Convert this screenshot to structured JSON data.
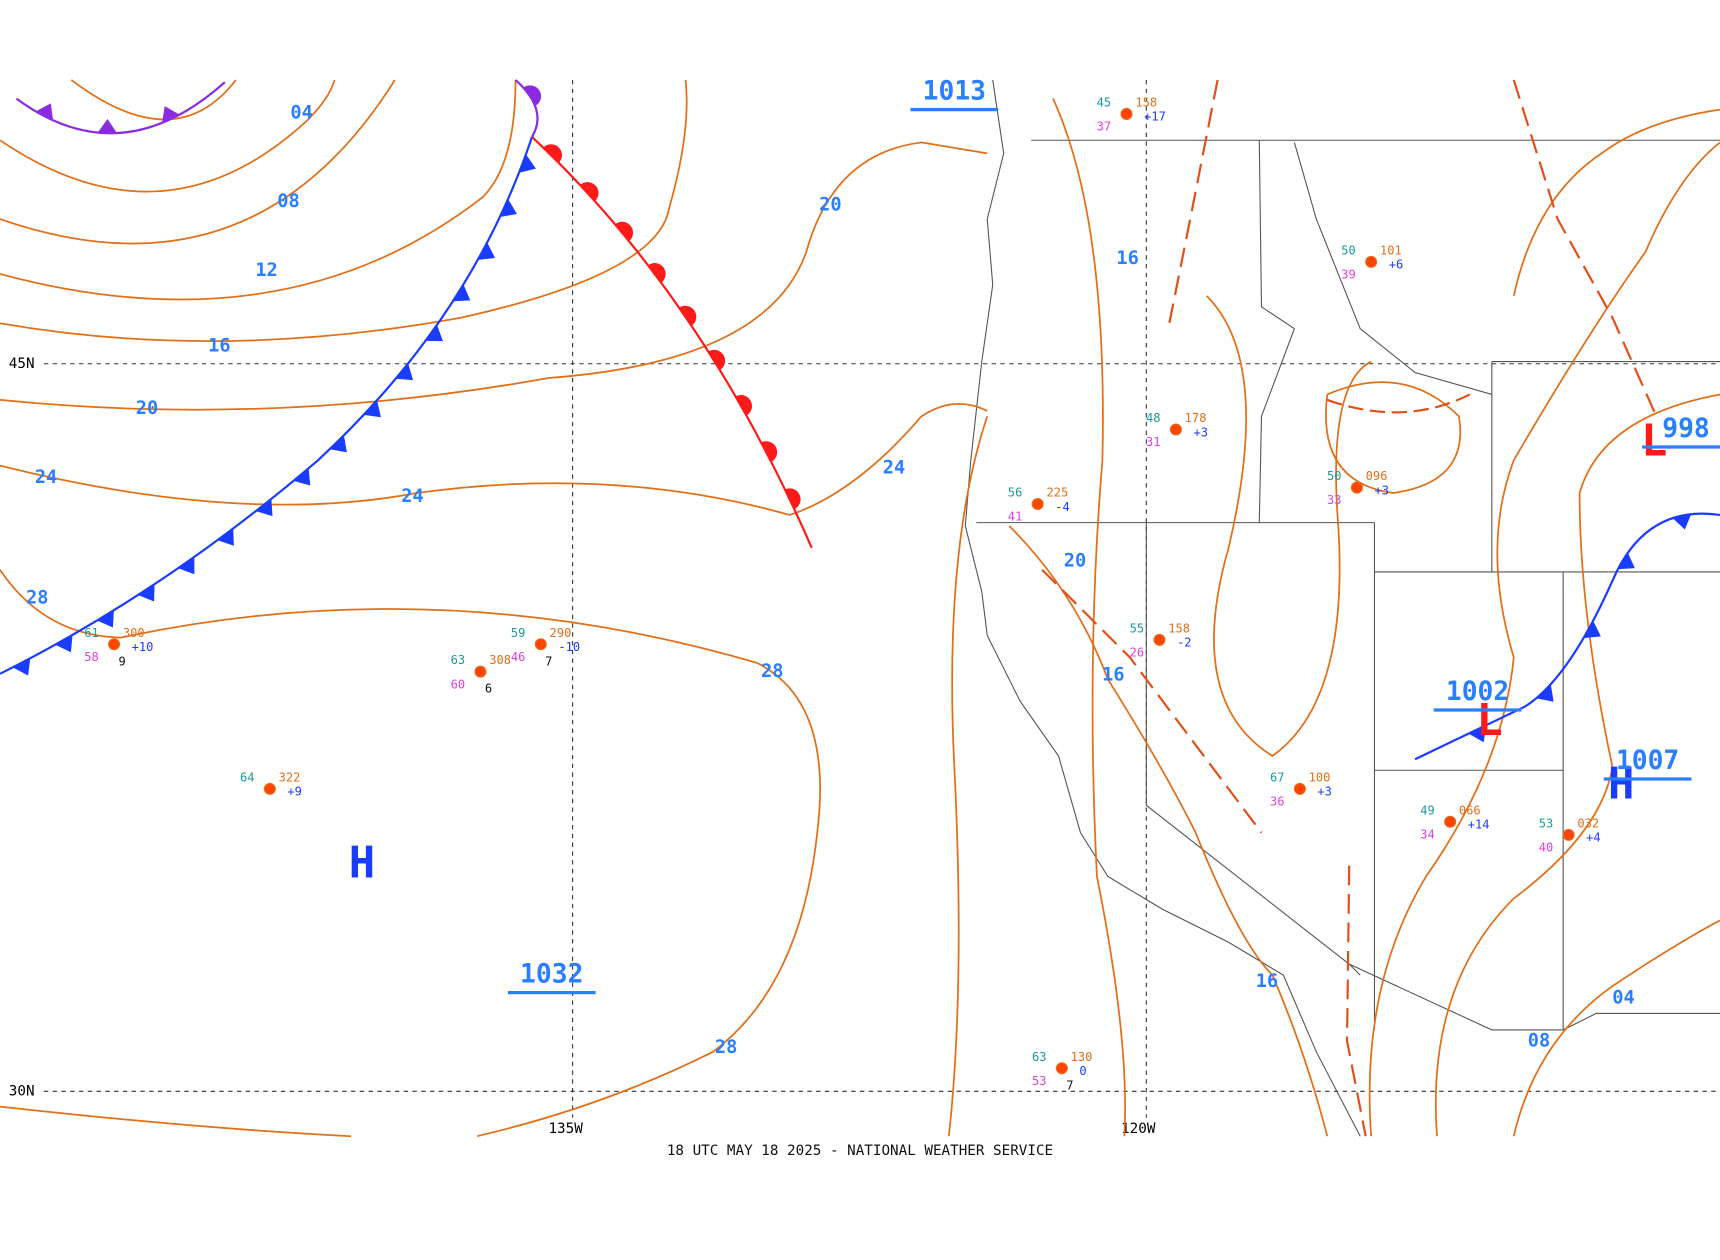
{
  "footer": "18 UTC MAY 18 2025 - NATIONAL WEATHER SERVICE",
  "grid_labels": {
    "lat": [
      "45N",
      "30N"
    ],
    "lon": [
      "135W",
      "120W"
    ]
  },
  "isobar_labels": [
    "04",
    "08",
    "12",
    "16",
    "20",
    "24",
    "24",
    "28",
    "28",
    "28",
    "20",
    "24",
    "16",
    "20",
    "16",
    "16",
    "04",
    "08"
  ],
  "pressure_centers": [
    {
      "symbol": "H",
      "value": "1032"
    },
    {
      "symbol": "L",
      "value": "1002"
    },
    {
      "symbol": "L",
      "value": "998"
    },
    {
      "symbol": "H",
      "value": "1007"
    },
    {
      "value": "1013"
    }
  ],
  "stations": [
    {
      "temp": "61",
      "dew": "58",
      "pressure": "300",
      "tendency": "+10",
      "vis": "9"
    },
    {
      "temp": "63",
      "dew": "60",
      "pressure": "308",
      "vis": "6"
    },
    {
      "temp": "59",
      "dew": "46",
      "pressure": "290",
      "tendency": "-10",
      "vis": "7"
    },
    {
      "temp": "64",
      "pressure": "322",
      "tendency": "+9"
    },
    {
      "temp": "63",
      "dew": "53",
      "pressure": "130",
      "tendency": "0",
      "vis": "7"
    },
    {
      "temp": "45",
      "dew": "37",
      "pressure": "158",
      "tendency": "+17"
    },
    {
      "temp": "50",
      "dew": "39",
      "pressure": "101",
      "tendency": "+6"
    },
    {
      "temp": "48",
      "dew": "31",
      "pressure": "178",
      "tendency": "+3"
    },
    {
      "temp": "50",
      "dew": "33",
      "pressure": "096",
      "tendency": "+3"
    },
    {
      "temp": "55",
      "dew": "26",
      "pressure": "158",
      "tendency": "-2"
    },
    {
      "temp": "67",
      "dew": "36",
      "pressure": "100",
      "tendency": "+3"
    },
    {
      "temp": "49",
      "dew": "34",
      "pressure": "066",
      "tendency": "+14"
    },
    {
      "temp": "53",
      "dew": "40",
      "pressure": "032",
      "tendency": "+4"
    },
    {
      "temp": "56",
      "dew": "41",
      "pressure": "225",
      "tendency": "-4"
    }
  ]
}
